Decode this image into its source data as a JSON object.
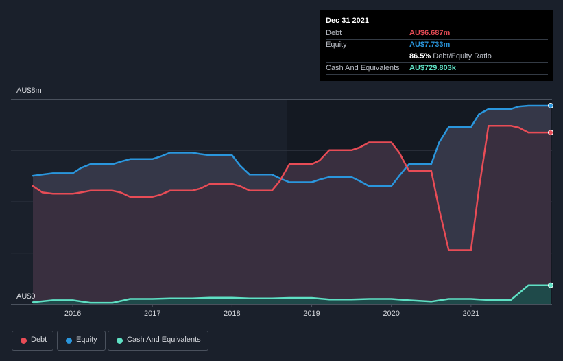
{
  "chart_data": {
    "type": "line",
    "x_range": [
      2015.5,
      2022.0
    ],
    "ylim": [
      0,
      8
    ],
    "y_labels": {
      "top": "AU$8m",
      "bottom": "AU$0"
    },
    "x_ticks": [
      2016,
      2017,
      2018,
      2019,
      2020,
      2021
    ],
    "x_tick_labels": [
      "2016",
      "2017",
      "2018",
      "2019",
      "2020",
      "2021"
    ],
    "series": [
      {
        "name": "Debt",
        "color": "#e84c56",
        "x": [
          2015.5,
          2015.62,
          2015.75,
          2016.0,
          2016.1,
          2016.22,
          2016.5,
          2016.6,
          2016.72,
          2017.0,
          2017.1,
          2017.22,
          2017.5,
          2017.6,
          2017.72,
          2018.0,
          2018.1,
          2018.22,
          2018.5,
          2018.6,
          2018.72,
          2019.0,
          2019.1,
          2019.22,
          2019.5,
          2019.6,
          2019.72,
          2020.0,
          2020.1,
          2020.22,
          2020.5,
          2020.6,
          2020.72,
          2021.0,
          2021.1,
          2021.22,
          2021.5,
          2021.6,
          2021.72,
          2022.0
        ],
        "y": [
          4.6,
          4.35,
          4.3,
          4.3,
          4.35,
          4.42,
          4.42,
          4.35,
          4.18,
          4.18,
          4.26,
          4.42,
          4.42,
          4.5,
          4.68,
          4.68,
          4.6,
          4.42,
          4.42,
          4.8,
          5.45,
          5.45,
          5.6,
          6.0,
          6.0,
          6.1,
          6.3,
          6.3,
          5.9,
          5.2,
          5.2,
          3.7,
          2.1,
          2.1,
          4.5,
          6.95,
          6.95,
          6.88,
          6.687,
          6.687
        ]
      },
      {
        "name": "Equity",
        "color": "#2a96dd",
        "x": [
          2015.5,
          2015.62,
          2015.75,
          2016.0,
          2016.1,
          2016.22,
          2016.5,
          2016.6,
          2016.72,
          2017.0,
          2017.1,
          2017.22,
          2017.5,
          2017.6,
          2017.72,
          2018.0,
          2018.1,
          2018.22,
          2018.5,
          2018.6,
          2018.72,
          2019.0,
          2019.1,
          2019.22,
          2019.5,
          2019.6,
          2019.72,
          2020.0,
          2020.1,
          2020.22,
          2020.5,
          2020.6,
          2020.72,
          2021.0,
          2021.1,
          2021.22,
          2021.5,
          2021.6,
          2021.72,
          2022.0
        ],
        "y": [
          5.0,
          5.05,
          5.1,
          5.1,
          5.3,
          5.45,
          5.45,
          5.55,
          5.65,
          5.65,
          5.75,
          5.9,
          5.9,
          5.85,
          5.8,
          5.8,
          5.4,
          5.05,
          5.05,
          4.9,
          4.75,
          4.75,
          4.85,
          4.95,
          4.95,
          4.8,
          4.6,
          4.6,
          5.0,
          5.45,
          5.45,
          6.3,
          6.9,
          6.9,
          7.4,
          7.6,
          7.6,
          7.7,
          7.733,
          7.733
        ]
      },
      {
        "name": "Cash And Equivalents",
        "color": "#5fe0c4",
        "x": [
          2015.5,
          2015.75,
          2016.0,
          2016.22,
          2016.5,
          2016.72,
          2017.0,
          2017.22,
          2017.5,
          2017.72,
          2018.0,
          2018.22,
          2018.5,
          2018.72,
          2019.0,
          2019.22,
          2019.5,
          2019.72,
          2020.0,
          2020.22,
          2020.5,
          2020.72,
          2021.0,
          2021.22,
          2021.5,
          2021.72,
          2022.0
        ],
        "y": [
          0.07,
          0.15,
          0.15,
          0.05,
          0.05,
          0.2,
          0.2,
          0.22,
          0.22,
          0.25,
          0.25,
          0.22,
          0.22,
          0.24,
          0.24,
          0.18,
          0.18,
          0.2,
          0.2,
          0.15,
          0.1,
          0.2,
          0.2,
          0.16,
          0.16,
          0.73,
          0.73
        ]
      }
    ]
  },
  "tooltip": {
    "date": "Dec 31 2021",
    "rows": [
      {
        "label": "Debt",
        "value": "AU$6.687m",
        "color": "#e84c56"
      },
      {
        "label": "Equity",
        "value": "AU$7.733m",
        "color": "#2a96dd"
      },
      {
        "label": "",
        "value": "86.5%",
        "suffix": "Debt/Equity Ratio",
        "color": "#ffffff"
      },
      {
        "label": "Cash And Equivalents",
        "value": "AU$729.803k",
        "color": "#5fe0c4"
      }
    ]
  },
  "legend": [
    {
      "label": "Debt",
      "color": "#e84c56"
    },
    {
      "label": "Equity",
      "color": "#2a96dd"
    },
    {
      "label": "Cash And Equivalents",
      "color": "#5fe0c4"
    }
  ]
}
